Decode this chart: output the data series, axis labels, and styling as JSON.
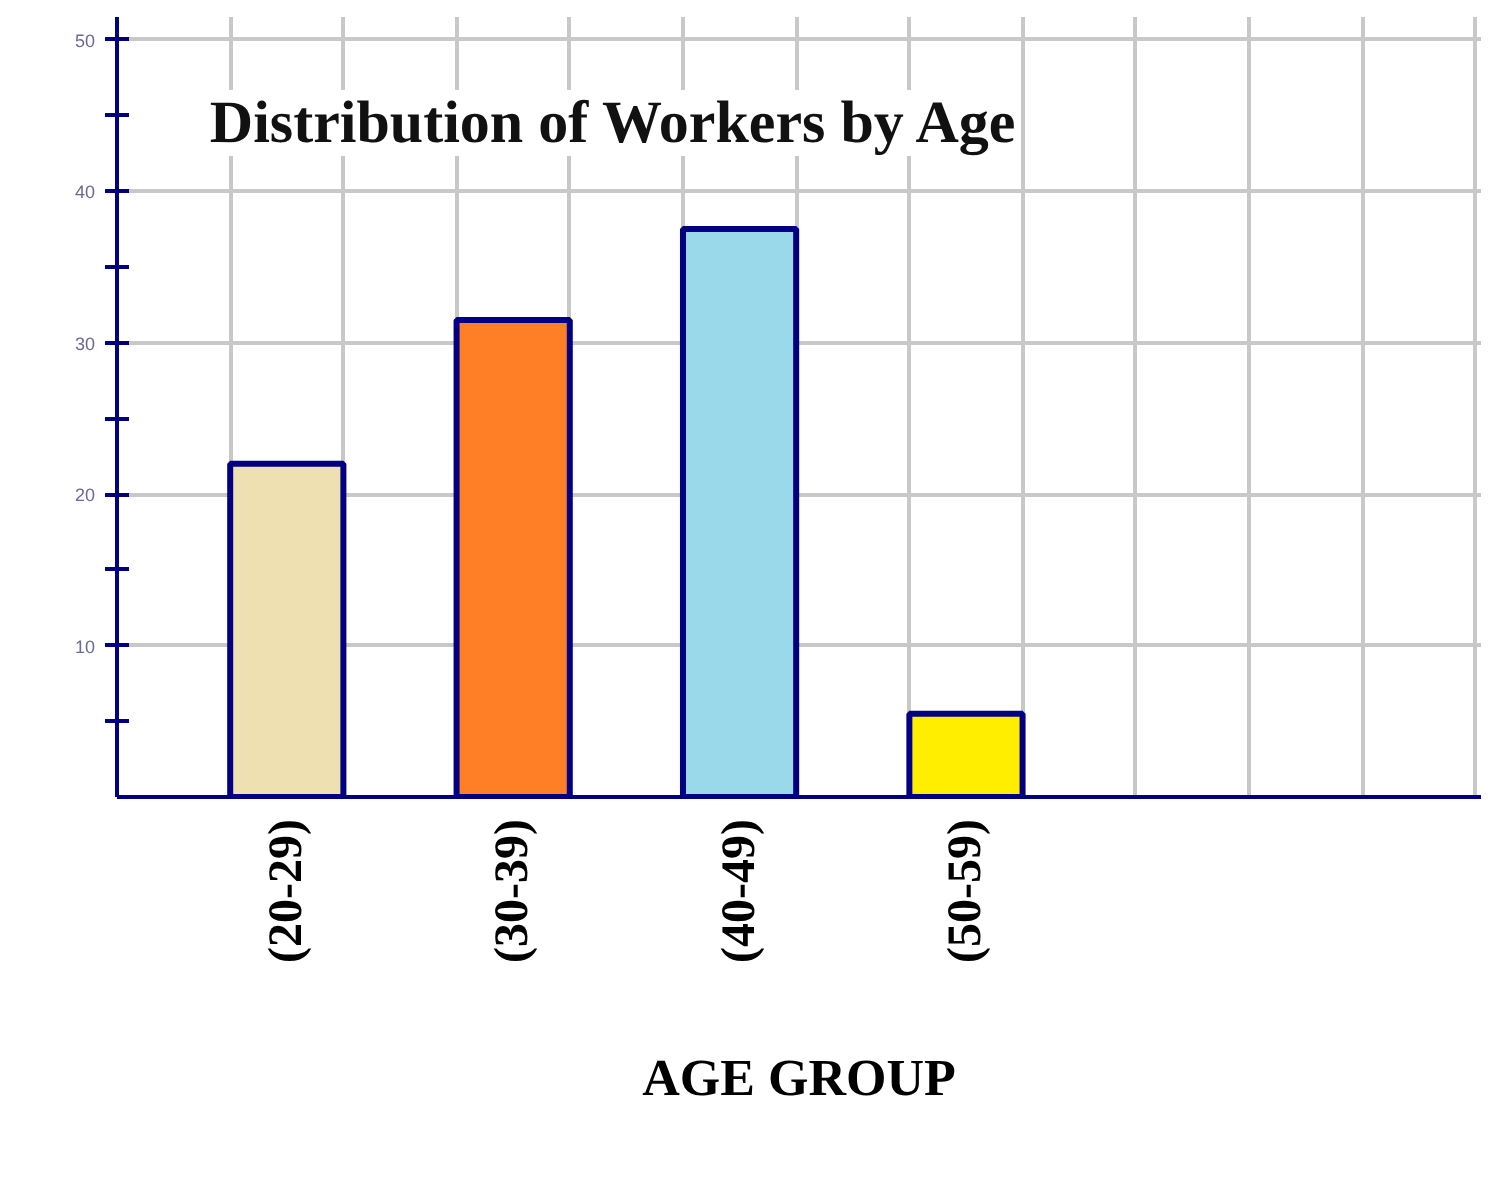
{
  "chart_data": {
    "type": "bar",
    "title": "Distribution of Workers by Age",
    "xlabel": "AGE GROUP",
    "categories": [
      "(20-29)",
      "(30-39)",
      "(40-49)",
      "(50-59)"
    ],
    "values": [
      22,
      31.5,
      37.5,
      5.5
    ],
    "colors": [
      "#eee0b0",
      "#ff7f27",
      "#99d9ea",
      "#ffee00"
    ],
    "ylim": [
      0,
      51.5
    ],
    "yticks": [
      10,
      20,
      30,
      40,
      50
    ],
    "grid": true
  }
}
